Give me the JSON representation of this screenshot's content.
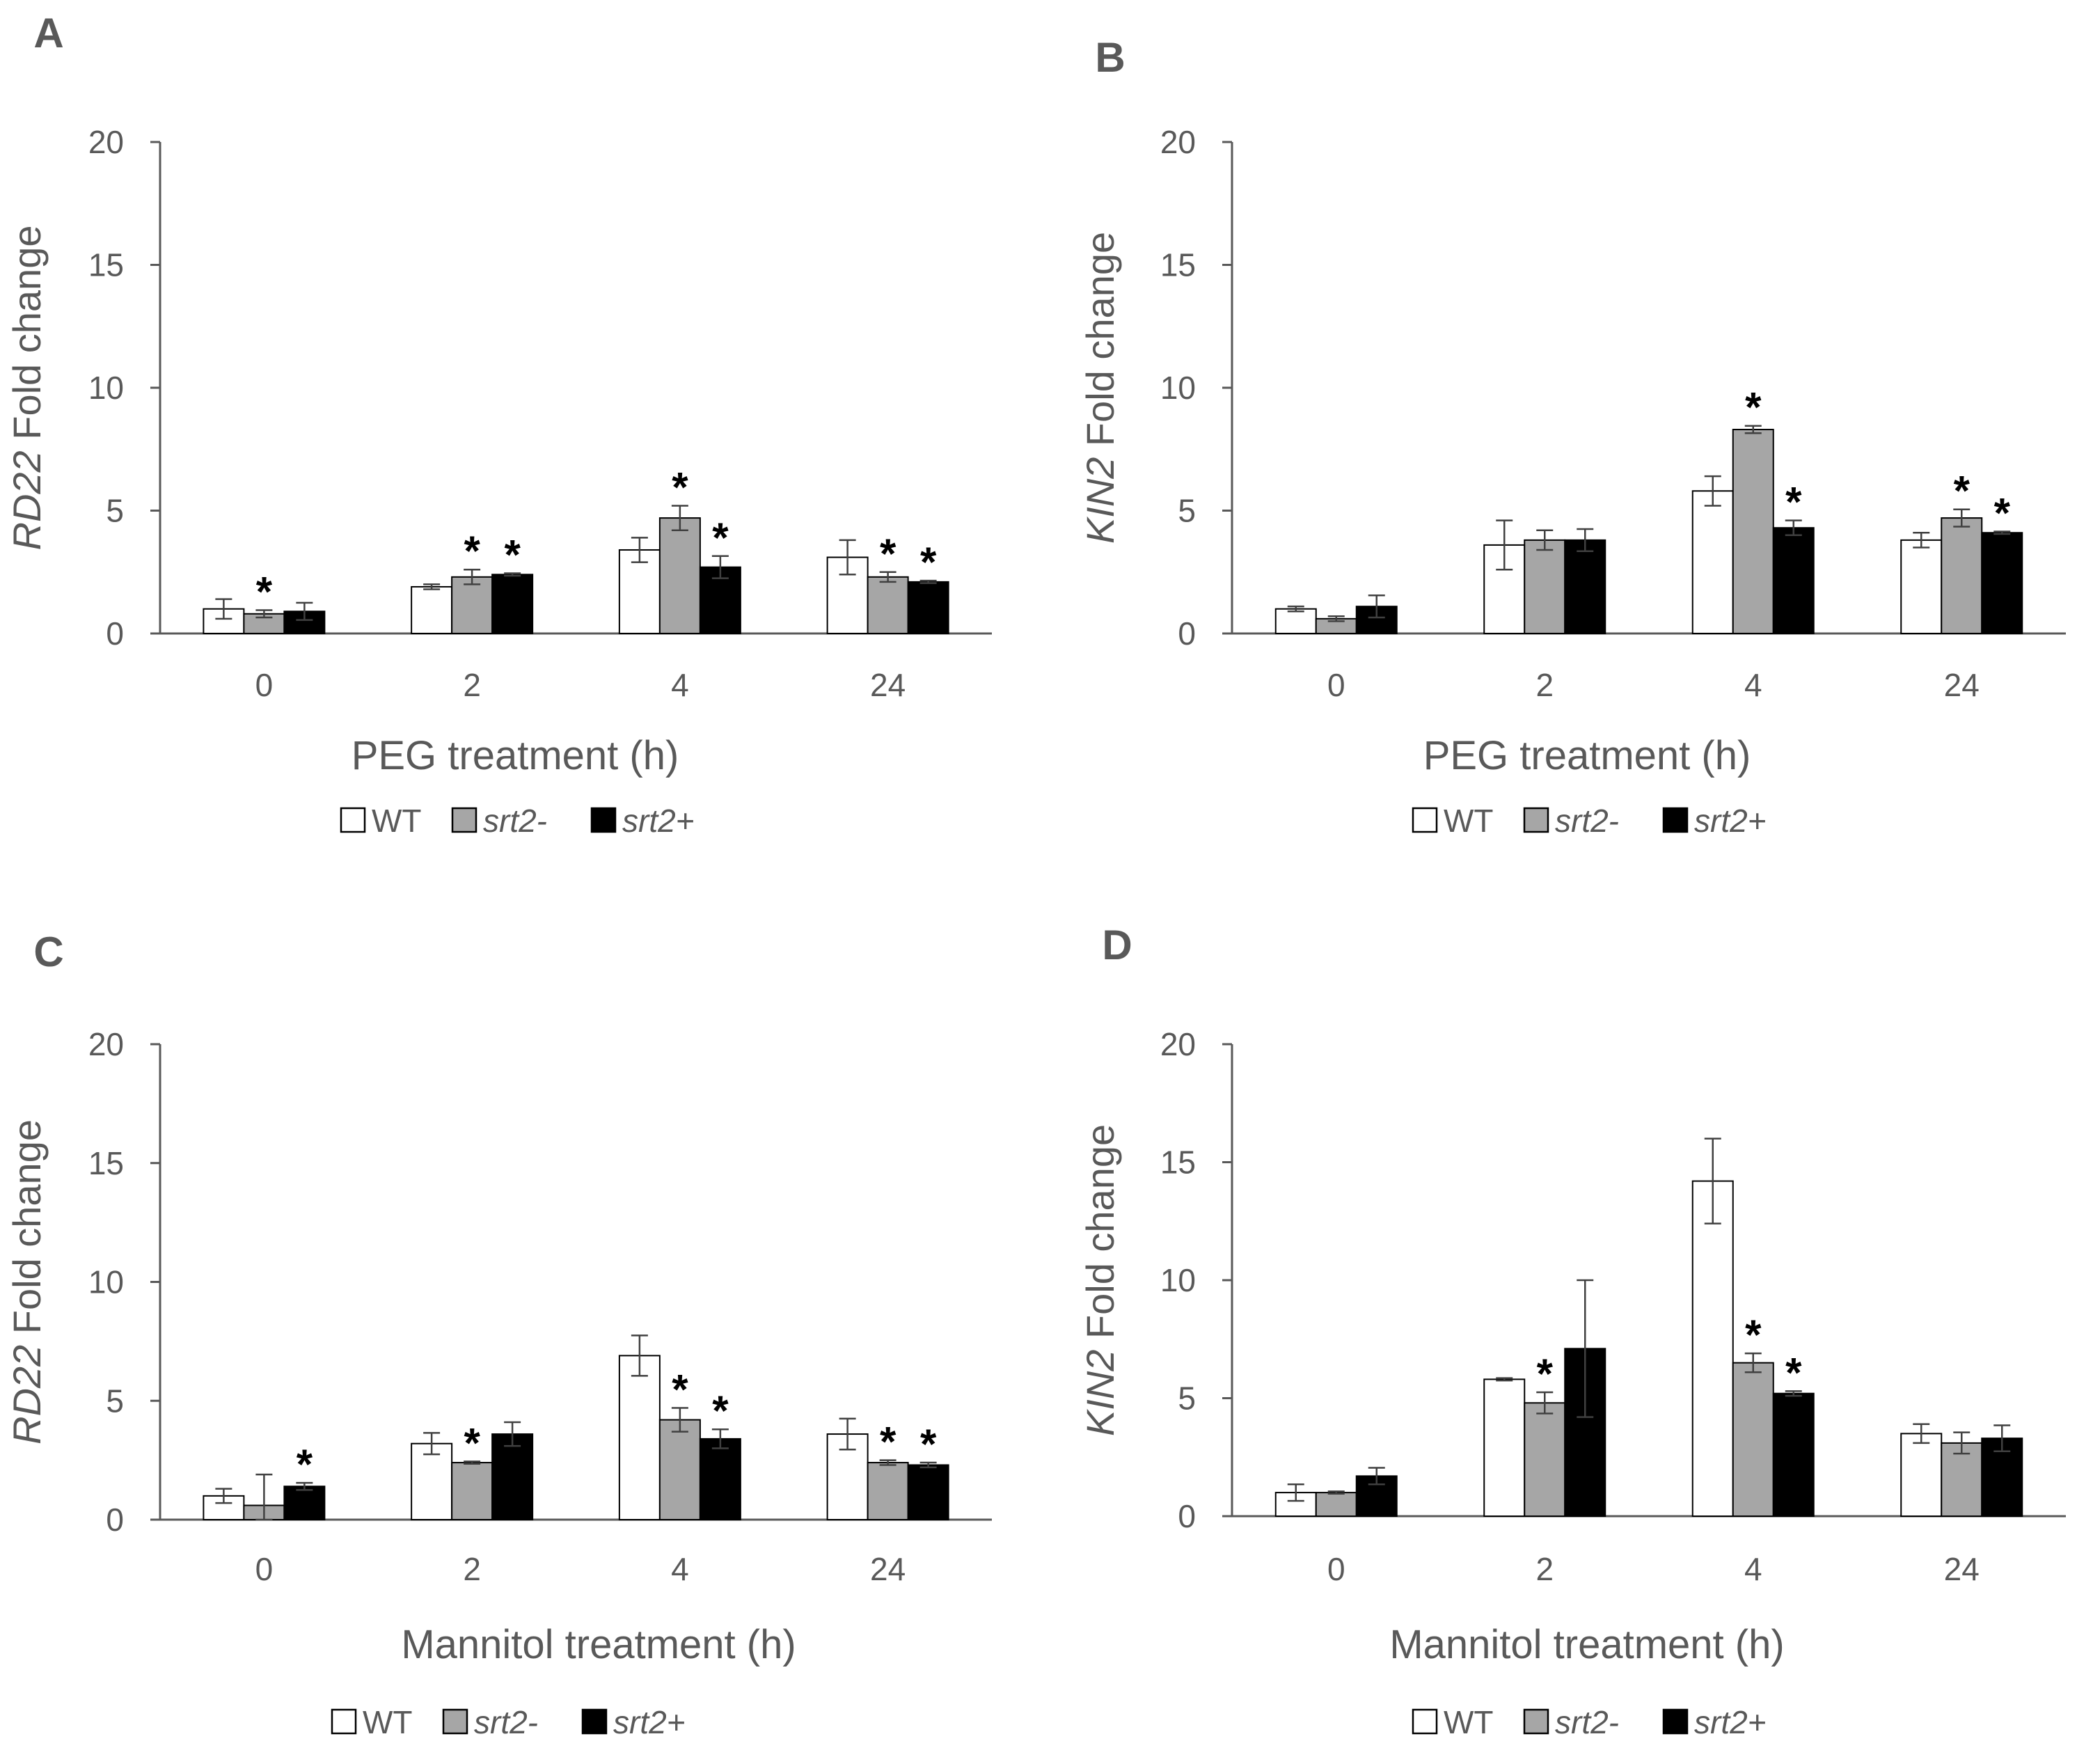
{
  "figure": {
    "legend": [
      {
        "key": "wt",
        "label": "WT",
        "italic": false,
        "fill": "#ffffff"
      },
      {
        "key": "srt2minus",
        "label": "srt2-",
        "italic": true,
        "fill": "#a6a6a6"
      },
      {
        "key": "srt2plus",
        "label": "srt2+",
        "italic": true,
        "fill": "#000000"
      }
    ],
    "significance_marker": "*",
    "colors": {
      "axis": "#595959",
      "text": "#595959",
      "error_bar": "#404040",
      "bar_stroke": "#000000"
    }
  },
  "chart_data": [
    {
      "panel": "A",
      "type": "bar",
      "ylabel_italic": "RD22",
      "ylabel_rest": " Fold change",
      "xlabel": "PEG treatment (h)",
      "categories": [
        "0",
        "2",
        "4",
        "24"
      ],
      "ylim": [
        0,
        20
      ],
      "yticks": [
        0,
        5,
        10,
        15,
        20
      ],
      "series": [
        {
          "name": "WT",
          "values": [
            1.0,
            1.9,
            3.4,
            3.1
          ],
          "errors": [
            0.4,
            0.1,
            0.5,
            0.7
          ],
          "significant": [
            false,
            false,
            false,
            false
          ]
        },
        {
          "name": "srt2-",
          "values": [
            0.8,
            2.3,
            4.7,
            2.3
          ],
          "errors": [
            0.15,
            0.3,
            0.5,
            0.2
          ],
          "significant": [
            true,
            true,
            true,
            true
          ]
        },
        {
          "name": "srt2+",
          "values": [
            0.9,
            2.4,
            2.7,
            2.1
          ],
          "errors": [
            0.35,
            0.05,
            0.45,
            0.05
          ],
          "significant": [
            false,
            true,
            true,
            true
          ]
        }
      ]
    },
    {
      "panel": "B",
      "type": "bar",
      "ylabel_italic": "KIN2",
      "ylabel_rest": " Fold change",
      "xlabel": "PEG treatment (h)",
      "categories": [
        "0",
        "2",
        "4",
        "24"
      ],
      "ylim": [
        0,
        20
      ],
      "yticks": [
        0,
        5,
        10,
        15,
        20
      ],
      "series": [
        {
          "name": "WT",
          "values": [
            1.0,
            3.6,
            5.8,
            3.8
          ],
          "errors": [
            0.1,
            1.0,
            0.6,
            0.3
          ],
          "significant": [
            false,
            false,
            false,
            false
          ]
        },
        {
          "name": "srt2-",
          "values": [
            0.6,
            3.8,
            8.3,
            4.7
          ],
          "errors": [
            0.1,
            0.4,
            0.15,
            0.35
          ],
          "significant": [
            false,
            false,
            true,
            true
          ]
        },
        {
          "name": "srt2+",
          "values": [
            1.1,
            3.8,
            4.3,
            4.1
          ],
          "errors": [
            0.45,
            0.45,
            0.3,
            0.05
          ],
          "significant": [
            false,
            false,
            true,
            true
          ]
        }
      ]
    },
    {
      "panel": "C",
      "type": "bar",
      "ylabel_italic": "RD22",
      "ylabel_rest": " Fold change",
      "xlabel": "Mannitol treatment (h)",
      "categories": [
        "0",
        "2",
        "4",
        "24"
      ],
      "ylim": [
        0,
        20
      ],
      "yticks": [
        0,
        5,
        10,
        15,
        20
      ],
      "series": [
        {
          "name": "WT",
          "values": [
            1.0,
            3.2,
            6.9,
            3.6
          ],
          "errors": [
            0.3,
            0.45,
            0.85,
            0.65
          ],
          "significant": [
            false,
            false,
            false,
            false
          ]
        },
        {
          "name": "srt2-",
          "values": [
            0.6,
            2.4,
            4.2,
            2.4
          ],
          "errors": [
            1.3,
            0.05,
            0.5,
            0.1
          ],
          "significant": [
            false,
            true,
            true,
            true
          ]
        },
        {
          "name": "srt2+",
          "values": [
            1.4,
            3.6,
            3.4,
            2.3
          ],
          "errors": [
            0.15,
            0.5,
            0.4,
            0.1
          ],
          "significant": [
            true,
            false,
            true,
            true
          ]
        }
      ]
    },
    {
      "panel": "D",
      "type": "bar",
      "ylabel_italic": "KIN2",
      "ylabel_rest": " Fold change",
      "xlabel": "Mannitol treatment (h)",
      "categories": [
        "0",
        "2",
        "4",
        "24"
      ],
      "ylim": [
        0,
        20
      ],
      "yticks": [
        0,
        5,
        10,
        15,
        20
      ],
      "series": [
        {
          "name": "WT",
          "values": [
            1.0,
            5.8,
            14.2,
            3.5
          ],
          "errors": [
            0.35,
            0.05,
            1.8,
            0.4
          ],
          "significant": [
            false,
            false,
            false,
            false
          ]
        },
        {
          "name": "srt2-",
          "values": [
            1.0,
            4.8,
            6.5,
            3.1
          ],
          "errors": [
            0.05,
            0.45,
            0.4,
            0.45
          ],
          "significant": [
            false,
            true,
            true,
            false
          ]
        },
        {
          "name": "srt2+",
          "values": [
            1.7,
            7.1,
            5.2,
            3.3
          ],
          "errors": [
            0.35,
            2.9,
            0.1,
            0.55
          ],
          "significant": [
            false,
            false,
            true,
            false
          ]
        }
      ]
    }
  ]
}
